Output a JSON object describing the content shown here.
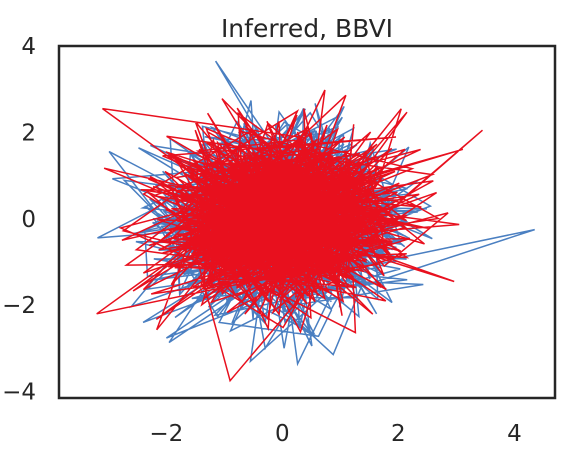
{
  "chart_data": {
    "type": "line",
    "title": "Inferred, BBVI",
    "xlabel": "",
    "ylabel": "",
    "xlim": [
      -3.85,
      4.7
    ],
    "ylim": [
      -4.15,
      4.0
    ],
    "xticks": [
      -2,
      0,
      2,
      4
    ],
    "yticks": [
      -4,
      -2,
      0,
      2,
      4
    ],
    "xtick_labels": [
      "−2",
      "0",
      "2",
      "4"
    ],
    "ytick_labels": [
      "−4",
      "−2",
      "0",
      "2",
      "4"
    ],
    "grid": false,
    "legend": "none",
    "series": [
      {
        "color": "#4a7fc1",
        "distribution": "random walk of jumps between points sampled from a 2D Gaussian, roughly N(0, 1) in both x and y",
        "approx_points": 1200,
        "extremes": [
          [
            4.35,
            -0.25
          ],
          [
            -1.15,
            3.65
          ],
          [
            -0.55,
            -3.3
          ],
          [
            -2.4,
            -2.4
          ]
        ]
      },
      {
        "color": "#e8101e",
        "distribution": "random walk of jumps between points sampled from a 2D Gaussian, roughly N(0, 1) in both x and y",
        "approx_points": 1200,
        "extremes": [
          [
            3.45,
            2.05
          ],
          [
            -3.1,
            2.55
          ],
          [
            -0.9,
            -3.75
          ],
          [
            -3.2,
            -2.2
          ]
        ]
      }
    ]
  }
}
